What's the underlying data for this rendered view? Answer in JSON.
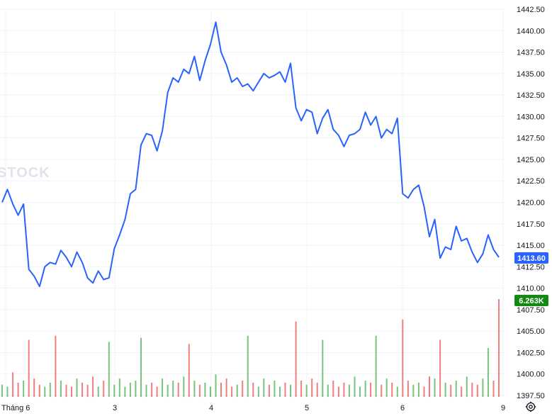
{
  "watermark": "STOCK",
  "price_badge": {
    "label": "1413.60",
    "color": "#2962ff"
  },
  "volume_badge": {
    "label": "6.263K",
    "color": "#138813"
  },
  "colors": {
    "line": "#2962ff",
    "vol_up": "#26a69a",
    "vol_up_alt": "#4caf50",
    "vol_down": "#ef5350",
    "grid": "#f0f3fa"
  },
  "icons": {
    "settings": "settings-gear-icon"
  },
  "chart_data": {
    "type": "line",
    "x_labels": [
      "Tháng 6",
      "3",
      "4",
      "5",
      "6",
      "9"
    ],
    "y_ticks": [
      "1442.50",
      "1440.00",
      "1437.50",
      "1435.00",
      "1432.50",
      "1430.00",
      "1427.50",
      "1425.00",
      "1422.50",
      "1420.00",
      "1417.50",
      "1415.00",
      "1412.50",
      "1410.00",
      "1407.50",
      "1405.00",
      "1402.50",
      "1400.00",
      "1397.50"
    ],
    "ylim": [
      1397.5,
      1442.5
    ],
    "last_price": 1413.6,
    "last_volume_label": "6.263K",
    "series": [
      {
        "values": [
          1420.0,
          1421.5,
          1419.8,
          1418.5,
          1419.8,
          1412.2,
          1411.4,
          1410.2,
          1412.5,
          1413.0,
          1412.8,
          1414.4,
          1413.6,
          1412.5,
          1414.2,
          1413.0,
          1411.2,
          1410.6,
          1412.0,
          1411.0,
          1411.2,
          1414.6,
          1416.2,
          1418.0,
          1421.0,
          1421.5,
          1426.7,
          1428.0,
          1427.8,
          1426.0,
          1428.3,
          1432.8,
          1434.5,
          1434.0,
          1435.5,
          1435.0,
          1437.0,
          1434.2,
          1436.5,
          1438.4,
          1441.0,
          1437.5,
          1436.0,
          1434.0,
          1434.5,
          1433.5,
          1433.8,
          1433.0,
          1434.0,
          1435.0,
          1434.5,
          1434.8,
          1435.2,
          1434.0,
          1436.2,
          1431.0,
          1429.5,
          1430.8,
          1430.5,
          1428.0,
          1429.8,
          1430.8,
          1428.5,
          1427.8,
          1426.5,
          1427.8,
          1428.0,
          1428.5,
          1430.5,
          1429.0,
          1430.0,
          1427.5,
          1428.5,
          1428.0,
          1429.8,
          1421.0,
          1420.5,
          1421.5,
          1422.0,
          1419.5,
          1416.0,
          1418.0,
          1413.5,
          1414.8,
          1414.5,
          1417.2,
          1415.5,
          1415.8,
          1414.2,
          1413.0,
          1414.0,
          1416.2,
          1414.5,
          1413.6
        ]
      }
    ],
    "volume": [
      6,
      5,
      12,
      7,
      8,
      28,
      9,
      6,
      5,
      7,
      30,
      8,
      6,
      5,
      9,
      7,
      6,
      10,
      5,
      8,
      27,
      6,
      9,
      5,
      7,
      8,
      29,
      6,
      7,
      5,
      9,
      6,
      8,
      7,
      10,
      26,
      8,
      6,
      7,
      5,
      11,
      7,
      9,
      5,
      6,
      8,
      30,
      7,
      5,
      9,
      6,
      8,
      5,
      7,
      6,
      37,
      8,
      6,
      9,
      7,
      28,
      6,
      8,
      5,
      7,
      6,
      10,
      5,
      8,
      7,
      30,
      6,
      9,
      7,
      5,
      38,
      8,
      6,
      7,
      5,
      10,
      9,
      28,
      7,
      6,
      8,
      5,
      10,
      7,
      6,
      9,
      24,
      8,
      48
    ]
  }
}
